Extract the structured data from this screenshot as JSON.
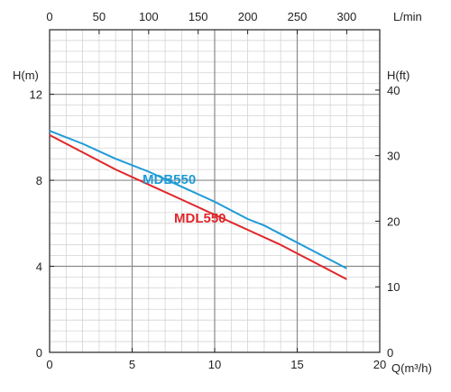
{
  "chart_data": {
    "type": "line",
    "title": "",
    "xlabel": "Q(m³/h)",
    "ylabel": "H(m)",
    "top_xlabel": "L/min",
    "right_ylabel": "H(ft)",
    "xlim": [
      0,
      20
    ],
    "ylim": [
      0,
      15
    ],
    "top_xlim": [
      0,
      333.33
    ],
    "right_ylim": [
      0,
      49.2
    ],
    "x_ticks": [
      "0",
      "5",
      "10",
      "15",
      "20"
    ],
    "y_ticks": [
      "0",
      "4",
      "8",
      "12"
    ],
    "top_x_ticks": [
      "0",
      "50",
      "100",
      "150",
      "200",
      "250",
      "300"
    ],
    "right_y_ticks": [
      "0",
      "10",
      "20",
      "30",
      "40"
    ],
    "grid": true,
    "series": [
      {
        "name": "MDB550",
        "color": "#1e9bd7",
        "x": [
          0,
          2,
          4,
          6,
          8,
          10,
          12,
          13,
          14,
          16,
          18
        ],
        "y": [
          10.3,
          9.7,
          9.0,
          8.4,
          7.7,
          7.0,
          6.2,
          5.9,
          5.5,
          4.7,
          3.9
        ]
      },
      {
        "name": "MDL550",
        "color": "#e0262a",
        "x": [
          0,
          2,
          4,
          6,
          8,
          10,
          12,
          14,
          16,
          18
        ],
        "y": [
          10.1,
          9.3,
          8.5,
          7.8,
          7.1,
          6.4,
          5.7,
          5.0,
          4.2,
          3.4
        ]
      }
    ]
  }
}
